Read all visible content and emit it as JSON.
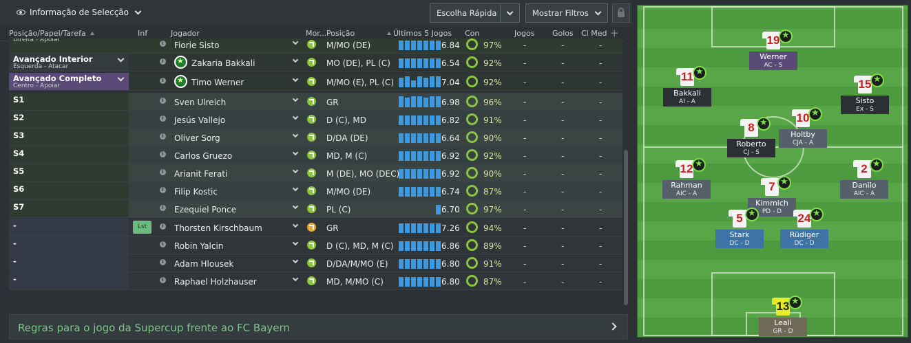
{
  "topbar": {
    "selection_info": "Informação de Selecção",
    "quick_pick": "Escolha Rápida",
    "show_filters": "Mostrar Filtros"
  },
  "columns": {
    "role": "Posição/Papel/Tarefa",
    "inf": "Inf",
    "player": "Jogador",
    "morale": "Mor...",
    "position": "Posição",
    "last5": "Últimos 5 Jogos",
    "con": "Con",
    "games": "Jogos",
    "goals": "Golos",
    "clmed": "Cl Med"
  },
  "rows": [
    {
      "role": "",
      "role_sub": "Direita - Apoiar",
      "name": "Fiorie Sisto",
      "pos": "M/MO (DE)",
      "form": [
        14,
        14,
        14,
        14,
        14,
        14,
        14
      ],
      "rating": "6.84",
      "cond": "97%",
      "bg": "#2f3a30",
      "role_bg": "#2f3a30"
    },
    {
      "role": "Avançado Interior",
      "role_sub": "Esquerda - Atacar",
      "name": "Zakaria Bakkali",
      "pos": "MO (DE), PL (C)",
      "form": [
        14,
        14,
        14,
        14,
        14,
        14,
        14
      ],
      "rating": "6.54",
      "cond": "92%",
      "badge": true,
      "bg": "#2e3634",
      "role_bg": "#333b3e"
    },
    {
      "role": "Avançado Completo",
      "role_sub": "Centro - Apoiar",
      "name": "Timo Werner",
      "pos": "M/MO (E), PL (C)",
      "form": [
        14,
        16,
        10,
        16,
        14,
        16,
        16
      ],
      "rating": "7.04",
      "cond": "92%",
      "badge": true,
      "bg": "#2e3634",
      "role_bg": "#5a4a78"
    },
    {
      "role": "S1",
      "name": "Sven Ulreich",
      "pos": "GR",
      "form": [
        16,
        14,
        16,
        16,
        14,
        16,
        16
      ],
      "rating": "6.98",
      "cond": "96%",
      "bg": "#3a4442",
      "role_bg": "#2f3a30"
    },
    {
      "role": "S2",
      "name": "Jesús Vallejo",
      "pos": "D (C), MD",
      "form": [
        14,
        14,
        14,
        14,
        14,
        14,
        14
      ],
      "rating": "6.82",
      "cond": "91%",
      "bg": "#354040",
      "role_bg": "#2f3a30"
    },
    {
      "role": "S3",
      "name": "Oliver Sorg",
      "pos": "D/DA (DE)",
      "form": [
        14,
        14,
        14,
        14,
        14,
        14,
        14
      ],
      "rating": "6.64",
      "cond": "90%",
      "bg": "#3a4442",
      "role_bg": "#2f3a30"
    },
    {
      "role": "S4",
      "name": "Carlos Gruezo",
      "pos": "MD, M (C)",
      "form": [
        14,
        14,
        14,
        14,
        14,
        14,
        14
      ],
      "rating": "6.92",
      "cond": "92%",
      "bg": "#354040",
      "role_bg": "#2f3a30"
    },
    {
      "role": "S5",
      "name": "Arianit Ferati",
      "pos": "M (DE), MO (DEC)",
      "form": [
        14,
        14,
        14,
        14,
        14,
        14,
        14
      ],
      "rating": "6.92",
      "cond": "90%",
      "bg": "#3a4442",
      "role_bg": "#2f3a30"
    },
    {
      "role": "S6",
      "name": "Filip Kostic",
      "pos": "M/MO (DE)",
      "form": [
        14,
        14,
        14,
        14,
        14,
        14,
        14
      ],
      "rating": "6.74",
      "cond": "87%",
      "bg": "#354040",
      "role_bg": "#2f3a30"
    },
    {
      "role": "S7",
      "name": "Ezequiel Ponce",
      "pos": "PL (C)",
      "form": [
        0,
        0,
        0,
        0,
        0,
        0,
        14
      ],
      "rating": "6.70",
      "cond": "97%",
      "bg": "#3a4442",
      "role_bg": "#2f3a30"
    },
    {
      "role": "-",
      "name": "Thorsten Kirschbaum",
      "pos": "GR",
      "form": [
        14,
        14,
        14,
        14,
        14,
        14,
        14
      ],
      "rating": "7.26",
      "cond": "94%",
      "lst": "Lst",
      "orange": true,
      "bg": "#2f3538",
      "role_bg": "#353b46"
    },
    {
      "role": "-",
      "name": "Robin Yalcin",
      "pos": "D (C), MD, M (C)",
      "form": [
        14,
        14,
        14,
        14,
        14,
        14,
        14
      ],
      "rating": "6.86",
      "cond": "89%",
      "bg": "#2f3538",
      "role_bg": "#353b46"
    },
    {
      "role": "-",
      "name": "Adam Hlousek",
      "pos": "D/DA/M/MO (E)",
      "form": [
        14,
        14,
        14,
        14,
        14,
        14,
        14
      ],
      "rating": "6.80",
      "cond": "91%",
      "bg": "#2f3538",
      "role_bg": "#353b46"
    },
    {
      "role": "-",
      "name": "Raphael Holzhauser",
      "pos": "MD, M/MO (C)",
      "form": [
        14,
        14,
        14,
        14,
        14,
        14,
        14
      ],
      "rating": "6.80",
      "cond": "87%",
      "bg": "#2f3538",
      "role_bg": "#353b46"
    }
  ],
  "footer": {
    "text": "Regras para o jogo da Supercup frente ao FC Bayern"
  },
  "pitch": {
    "players": [
      {
        "num": "19",
        "name": "Werner",
        "pos": "AC - S",
        "label_bg": "#5a4a78"
      },
      {
        "num": "11",
        "name": "Bakkali",
        "pos": "AI - A",
        "label_bg": "#2c2f33"
      },
      {
        "num": "15",
        "name": "Sisto",
        "pos": "Ex - S",
        "label_bg": "#2c2f33"
      },
      {
        "num": "8",
        "name": "Roberto",
        "pos": "CJ - S",
        "label_bg": "#2c2f33"
      },
      {
        "num": "10",
        "name": "Holtby",
        "pos": "CJA - A",
        "label_bg": "#56606a"
      },
      {
        "num": "12",
        "name": "Rahman",
        "pos": "AIC - A",
        "label_bg": "#56606a"
      },
      {
        "num": "2",
        "name": "Danilo",
        "pos": "AIC - A",
        "label_bg": "#56606a"
      },
      {
        "num": "7",
        "name": "Kimmich",
        "pos": "PD - D",
        "label_bg": "#56606a"
      },
      {
        "num": "5",
        "name": "Stark",
        "pos": "DC - D",
        "label_bg": "#3d73a5"
      },
      {
        "num": "24",
        "name": "Rüdiger",
        "pos": "DC - D",
        "label_bg": "#3d73a5"
      },
      {
        "num": "13",
        "name": "Leali",
        "pos": "GR - D",
        "label_bg": "#6f6a58",
        "gk": true
      }
    ]
  }
}
